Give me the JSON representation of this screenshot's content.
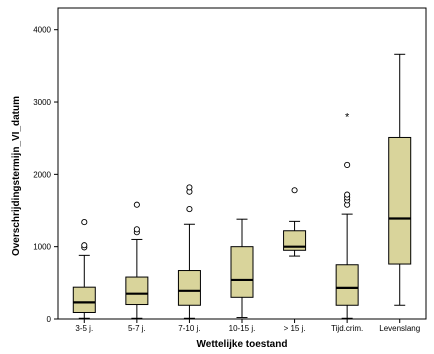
{
  "chart_data": {
    "type": "boxplot",
    "title": "",
    "xlabel": "Wettelijke toestand",
    "ylabel": "Overschrijdingstermijn_VI_datum",
    "ylim": [
      0,
      4300
    ],
    "yticks": [
      0,
      1000,
      2000,
      3000,
      4000
    ],
    "grid": false,
    "legend": "none",
    "colors": {
      "box_fill": "#d9d49b",
      "stroke": "#000000",
      "background": "#ffffff"
    },
    "categories": [
      "3-5 j.",
      "5-7 j.",
      "7-10 j.",
      "10-15 j.",
      "> 15 j.",
      "Tijd.crim.",
      "Levenslang"
    ],
    "boxes": [
      {
        "category": "3-5 j.",
        "min": 10,
        "q1": 90,
        "median": 230,
        "q3": 440,
        "max": 880,
        "outliers": [
          990,
          1020,
          1340
        ],
        "extremes": []
      },
      {
        "category": "5-7 j.",
        "min": 10,
        "q1": 200,
        "median": 350,
        "q3": 580,
        "max": 1100,
        "outliers": [
          1200,
          1240,
          1580
        ],
        "extremes": []
      },
      {
        "category": "7-10 j.",
        "min": 10,
        "q1": 190,
        "median": 390,
        "q3": 670,
        "max": 1310,
        "outliers": [
          1520,
          1760,
          1820
        ],
        "extremes": []
      },
      {
        "category": "10-15 j.",
        "min": 20,
        "q1": 300,
        "median": 540,
        "q3": 1000,
        "max": 1380,
        "outliers": [],
        "extremes": []
      },
      {
        "category": "> 15 j.",
        "min": 870,
        "q1": 950,
        "median": 1000,
        "q3": 1220,
        "max": 1350,
        "outliers": [
          1780
        ],
        "extremes": []
      },
      {
        "category": "Tijd.crim.",
        "min": 10,
        "q1": 190,
        "median": 430,
        "q3": 750,
        "max": 1450,
        "outliers": [
          1580,
          1640,
          1680,
          1720,
          2130
        ],
        "extremes": [
          2800
        ]
      },
      {
        "category": "Levenslang",
        "min": 190,
        "q1": 760,
        "median": 1390,
        "q3": 2510,
        "max": 3660,
        "outliers": [],
        "extremes": []
      }
    ]
  }
}
